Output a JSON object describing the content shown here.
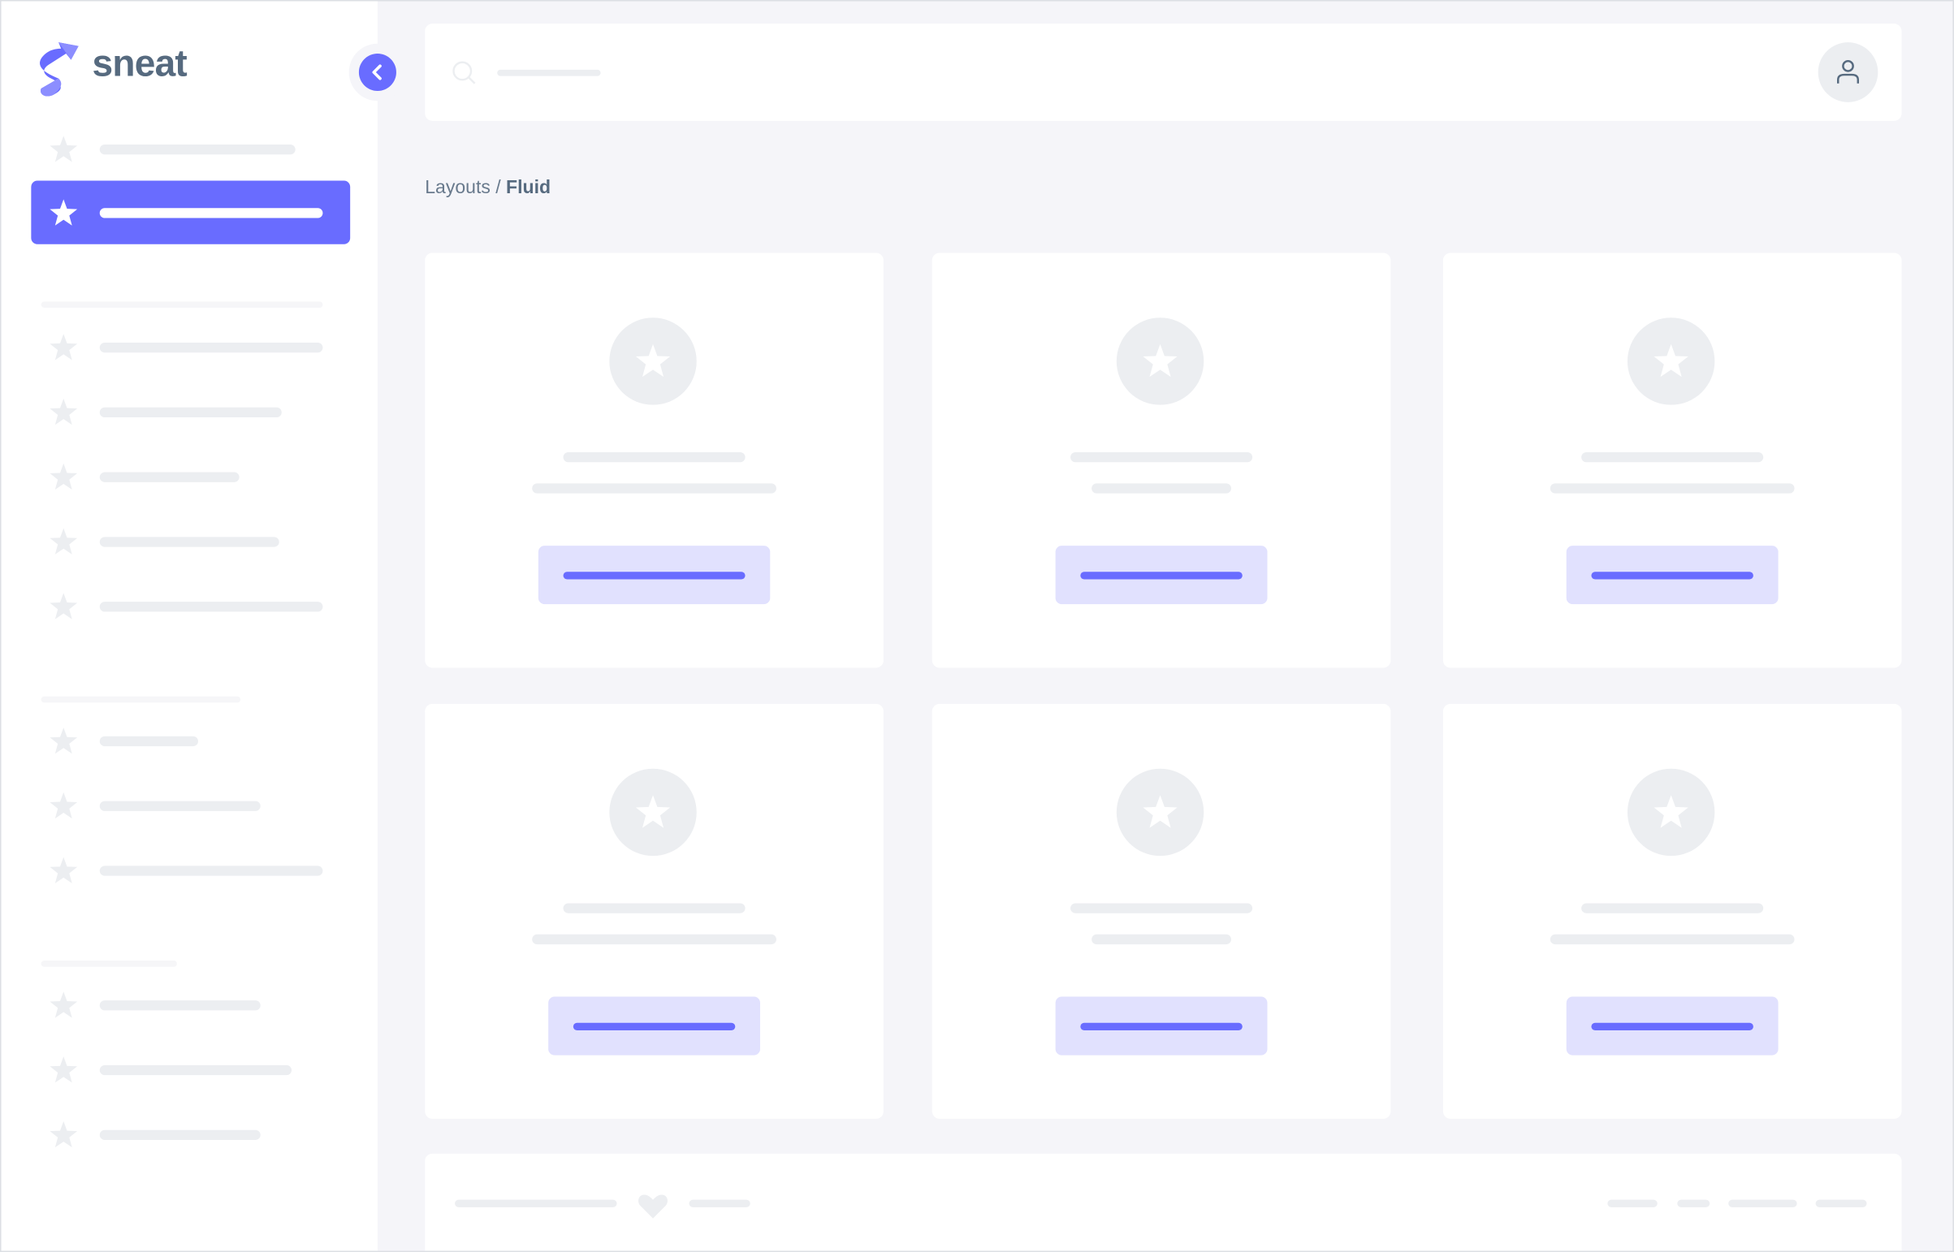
{
  "brand": {
    "name": "sneat",
    "logo_icon": "sneat-logo"
  },
  "colors": {
    "primary": "#696cff",
    "primary_light": "#e1e1fe",
    "placeholder": "#eceef1",
    "background": "#f5f5f9",
    "text": "#566a7f"
  },
  "sidebar": {
    "collapse_icon": "chevron-left-icon",
    "item_icon": "star-icon",
    "active_index": 1
  },
  "navbar": {
    "search_icon": "search-icon",
    "user_icon": "user-icon"
  },
  "breadcrumb": {
    "parent": "Layouts",
    "separator": " / ",
    "current": "Fluid"
  },
  "footer": {
    "icon": "heart-icon"
  }
}
